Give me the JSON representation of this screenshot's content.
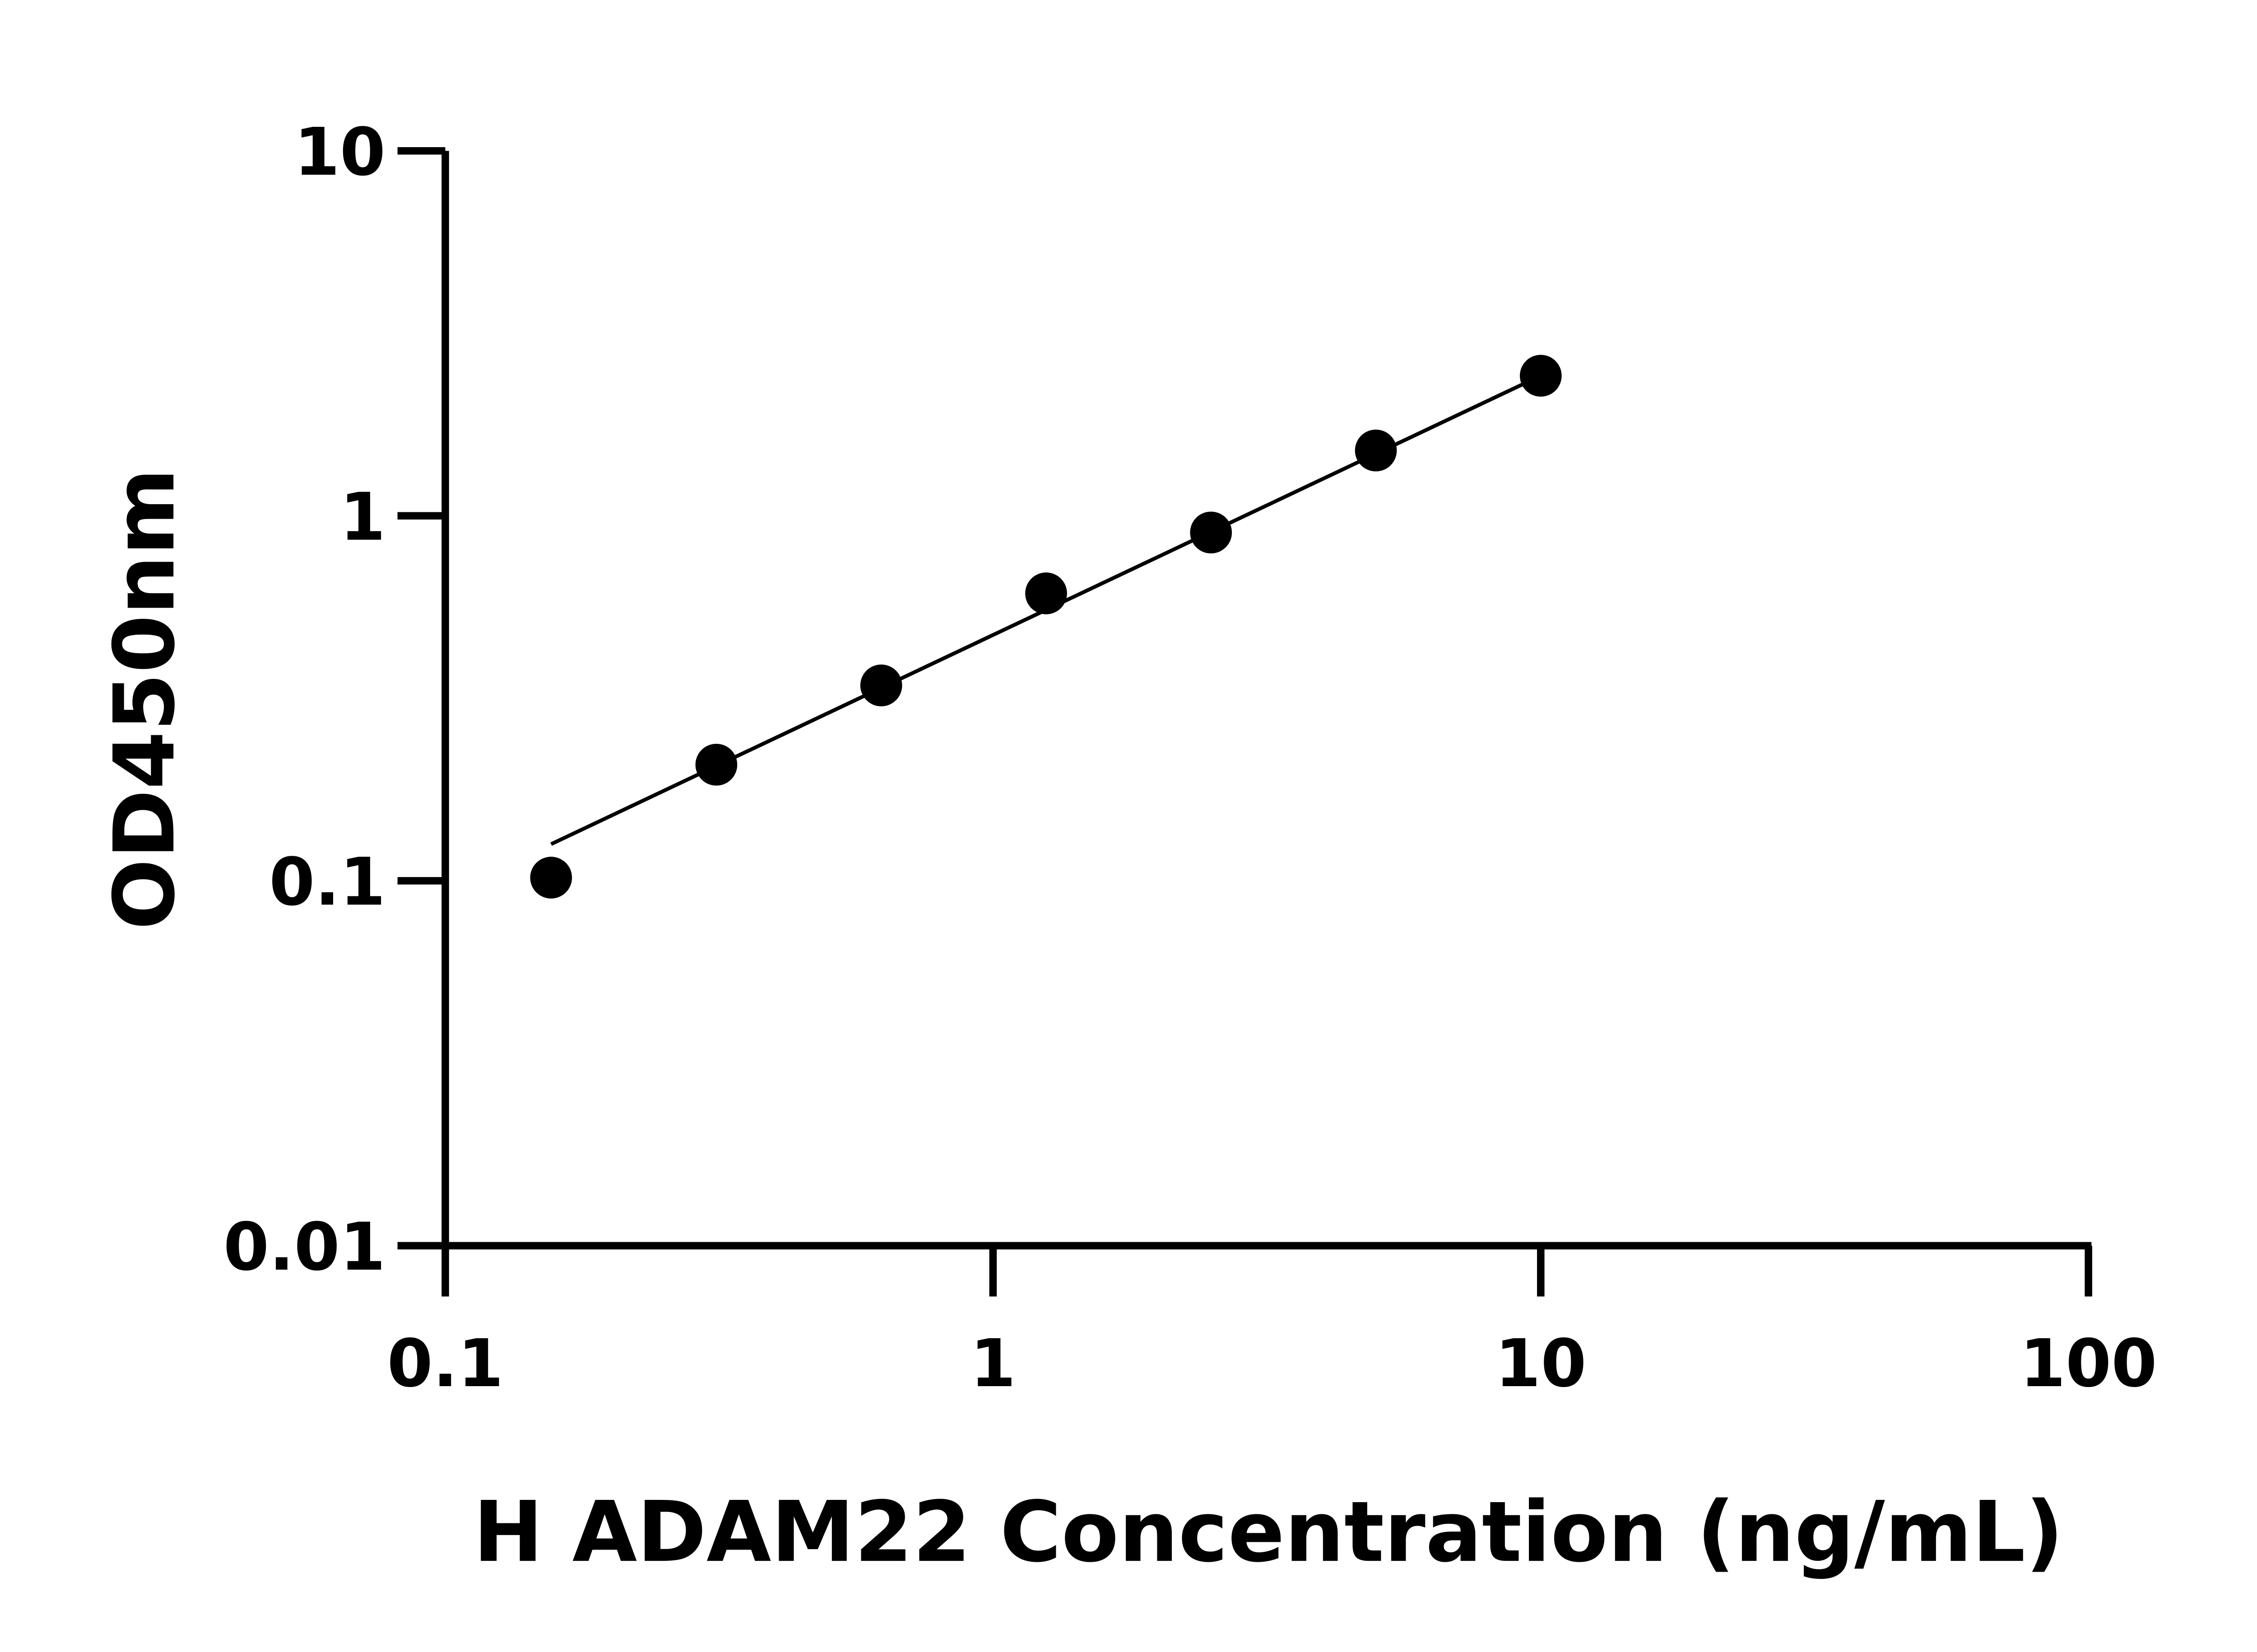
{
  "chart_data": {
    "type": "scatter",
    "title": "",
    "xlabel": "H ADAM22 Concentration (ng/mL)",
    "ylabel": "OD450nm",
    "x_scale": "log",
    "y_scale": "log",
    "xlim": [
      0.1,
      100
    ],
    "ylim": [
      0.01,
      10
    ],
    "x_ticks": [
      "0.1",
      "1",
      "10",
      "100"
    ],
    "y_ticks": [
      "0.01",
      "0.1",
      "1",
      "10"
    ],
    "grid": false,
    "legend": "none",
    "series": [
      {
        "x": [
          0.156,
          0.3125,
          0.625,
          1.25,
          2.5,
          5,
          10
        ],
        "y": [
          0.102,
          0.208,
          0.343,
          0.613,
          0.9,
          1.51,
          2.42
        ],
        "color": "#000000"
      }
    ],
    "fit_line": {
      "x": [
        0.156,
        10
      ],
      "y": [
        0.126,
        2.42
      ],
      "color": "#000000"
    }
  }
}
